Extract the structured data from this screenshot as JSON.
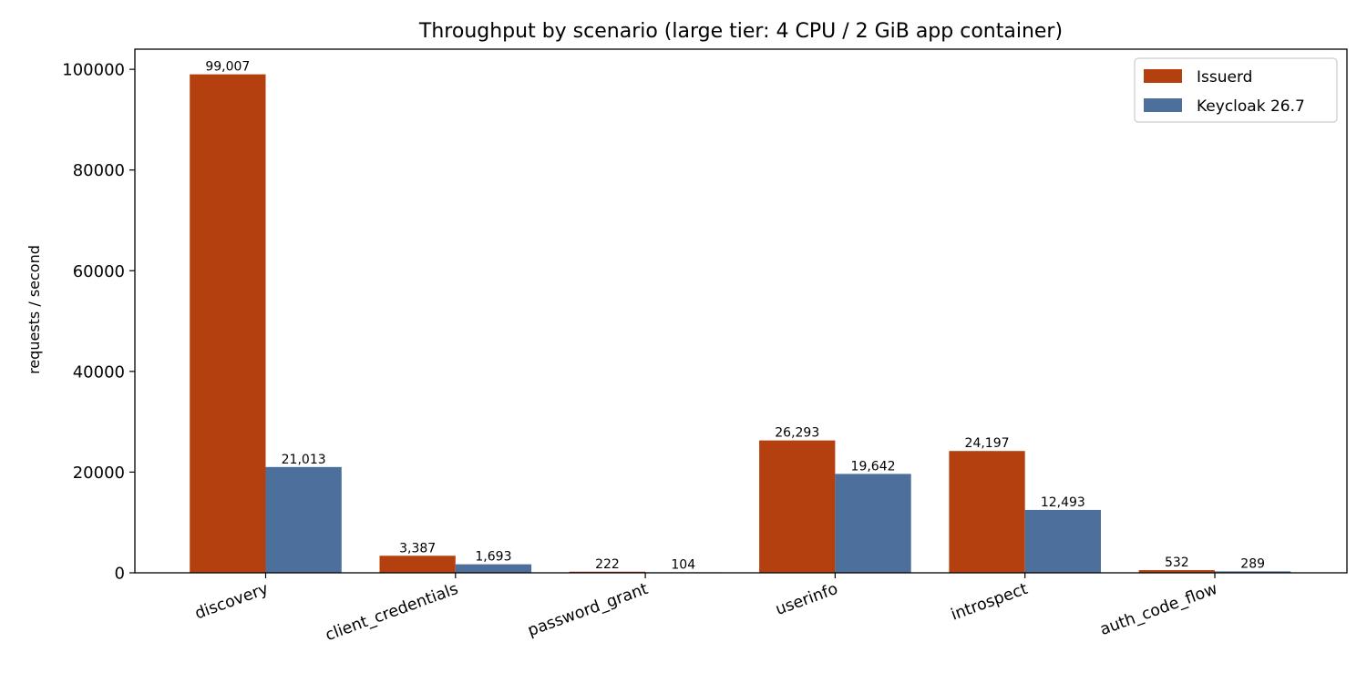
{
  "chart_data": {
    "type": "bar",
    "title": "Throughput by scenario (large tier: 4 CPU / 2 GiB app container)",
    "xlabel": "",
    "ylabel": "requests / second",
    "categories": [
      "discovery",
      "client_credentials",
      "password_grant",
      "userinfo",
      "introspect",
      "auth_code_flow"
    ],
    "series": [
      {
        "name": "Issuerd",
        "color": "#b5400f",
        "values": [
          99007,
          3387,
          222,
          26293,
          24197,
          532
        ],
        "labels": [
          "99,007",
          "3,387",
          "222",
          "26,293",
          "24,197",
          "532"
        ]
      },
      {
        "name": "Keycloak 26.7",
        "color": "#4c6f9c",
        "values": [
          21013,
          1693,
          104,
          19642,
          12493,
          289
        ],
        "labels": [
          "21,013",
          "1,693",
          "104",
          "19,642",
          "12,493",
          "289"
        ]
      }
    ],
    "ylim": [
      0,
      104000
    ],
    "yticks": [
      0,
      20000,
      40000,
      60000,
      80000,
      100000
    ],
    "ytick_labels": [
      "0",
      "20000",
      "40000",
      "60000",
      "80000",
      "100000"
    ],
    "grid": false,
    "legend_position": "top-right"
  }
}
